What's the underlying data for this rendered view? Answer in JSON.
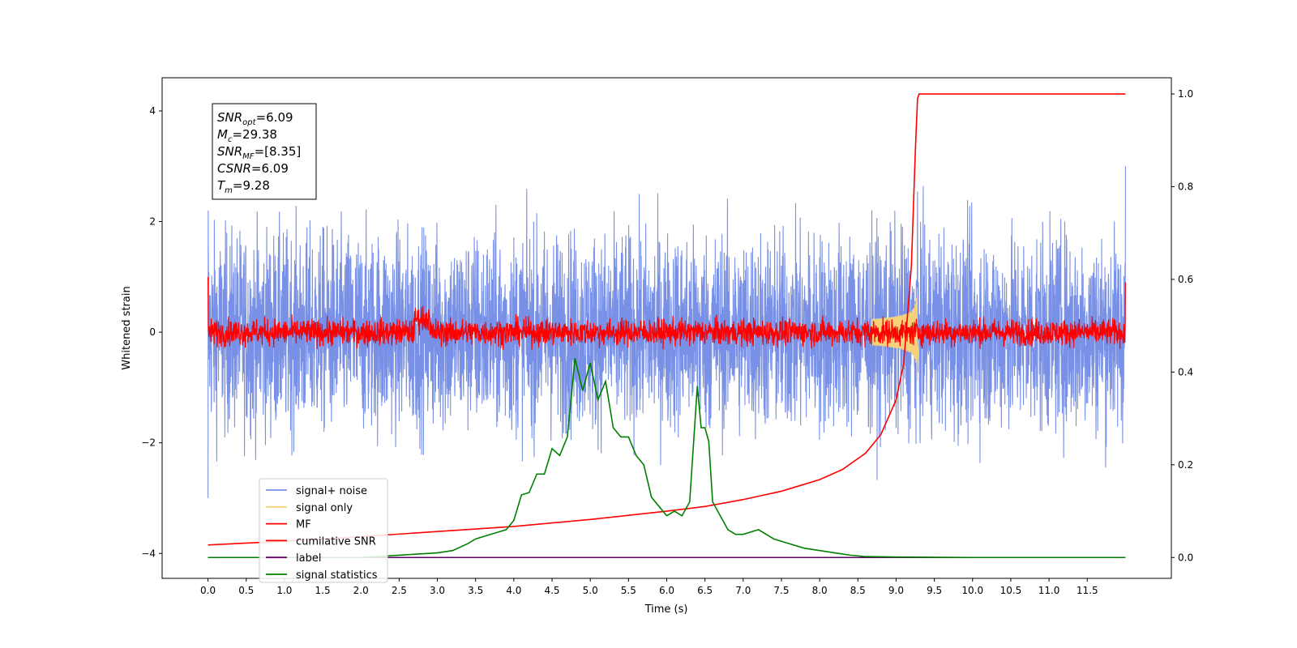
{
  "chart_data": {
    "type": "line",
    "xlabel": "Time (s)",
    "ylabel": "Whitened strain",
    "xlim": [
      -0.6,
      12.6
    ],
    "ylim": [
      -4.45,
      4.6
    ],
    "y2lim": [
      -0.045,
      1.035
    ],
    "xticks": [
      "0.0",
      "0.5",
      "1.0",
      "1.5",
      "2.0",
      "2.5",
      "3.0",
      "3.5",
      "4.0",
      "4.5",
      "5.0",
      "5.5",
      "6.0",
      "6.5",
      "7.0",
      "7.5",
      "8.0",
      "8.5",
      "9.0",
      "9.5",
      "10.0",
      "10.5",
      "11.0",
      "11.5"
    ],
    "yticks": [
      "−4",
      "−2",
      "0",
      "2",
      "4"
    ],
    "y2ticks": [
      "0.0",
      "0.2",
      "0.4",
      "0.6",
      "0.8",
      "1.0"
    ],
    "legend_position": "lower-left",
    "annotation": {
      "lines": [
        {
          "label": "SNR",
          "sub": "opt",
          "value": "=6.09"
        },
        {
          "label": "M",
          "sub": "c",
          "value": "=29.38"
        },
        {
          "label": "SNR",
          "sub": "MF",
          "value": "=[8.35]"
        },
        {
          "label": "CSNR",
          "sub": "",
          "value": "=6.09"
        },
        {
          "label": "T",
          "sub": "m",
          "value": "=9.28"
        }
      ]
    },
    "series": [
      {
        "name": "signal+ noise",
        "color": "#7890e6",
        "axis": "left",
        "style": "noise",
        "noise_std": 0.9,
        "x_range": [
          0.0,
          12.0
        ]
      },
      {
        "name": "signal only",
        "color": "#f5d27a",
        "axis": "left",
        "style": "chirp",
        "merger_time": 9.28,
        "peak_amplitude": 0.9
      },
      {
        "name": "MF",
        "color": "#ff0000",
        "axis": "left",
        "style": "mf_noise",
        "noise_std": 0.12,
        "x_range": [
          0.0,
          12.0
        ]
      },
      {
        "name": "cumilative SNR",
        "color": "#ff0000",
        "axis": "right",
        "x": [
          0.0,
          1.0,
          2.0,
          3.0,
          4.0,
          5.0,
          6.0,
          6.5,
          7.0,
          7.5,
          8.0,
          8.3,
          8.6,
          8.8,
          9.0,
          9.1,
          9.2,
          9.25,
          9.28,
          9.3,
          12.0
        ],
        "values": [
          0.027,
          0.035,
          0.045,
          0.056,
          0.067,
          0.082,
          0.1,
          0.11,
          0.125,
          0.143,
          0.168,
          0.19,
          0.225,
          0.265,
          0.34,
          0.42,
          0.63,
          0.87,
          0.99,
          1.0,
          1.0
        ]
      },
      {
        "name": "label",
        "color": "#6a006a",
        "axis": "right",
        "x": [
          0.0,
          12.0
        ],
        "values": [
          0.0,
          0.0
        ]
      },
      {
        "name": "signal statistics",
        "color": "#008000",
        "axis": "right",
        "x": [
          0.0,
          0.5,
          1.0,
          1.5,
          2.0,
          2.5,
          3.0,
          3.2,
          3.4,
          3.5,
          3.7,
          3.8,
          3.9,
          4.0,
          4.1,
          4.2,
          4.3,
          4.4,
          4.5,
          4.6,
          4.7,
          4.8,
          4.9,
          5.0,
          5.1,
          5.2,
          5.3,
          5.4,
          5.5,
          5.6,
          5.7,
          5.8,
          5.9,
          6.0,
          6.1,
          6.2,
          6.3,
          6.4,
          6.45,
          6.5,
          6.55,
          6.6,
          6.7,
          6.8,
          6.9,
          7.0,
          7.2,
          7.4,
          7.6,
          7.8,
          8.0,
          8.2,
          8.4,
          8.6,
          9.0,
          10.0,
          11.0,
          12.0
        ],
        "values": [
          0.0,
          0.0,
          0.0,
          0.0,
          0.0,
          0.005,
          0.01,
          0.015,
          0.03,
          0.04,
          0.05,
          0.055,
          0.06,
          0.08,
          0.135,
          0.14,
          0.18,
          0.18,
          0.235,
          0.22,
          0.26,
          0.43,
          0.36,
          0.42,
          0.34,
          0.38,
          0.28,
          0.26,
          0.26,
          0.22,
          0.2,
          0.13,
          0.11,
          0.09,
          0.1,
          0.09,
          0.12,
          0.37,
          0.28,
          0.28,
          0.25,
          0.12,
          0.09,
          0.06,
          0.05,
          0.05,
          0.06,
          0.04,
          0.03,
          0.02,
          0.015,
          0.01,
          0.005,
          0.002,
          0.001,
          0.0,
          0.0,
          0.0
        ]
      }
    ]
  }
}
